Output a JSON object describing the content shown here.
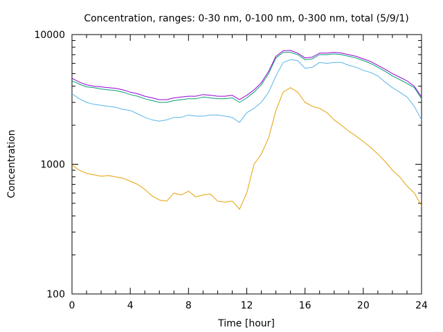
{
  "chart_data": {
    "type": "line",
    "title": "Concentration, ranges: 0-30 nm, 0-100 nm, 0-300 nm, total (5/9/1)",
    "xlabel": "Time [hour]",
    "ylabel": "Concentration",
    "xlim": [
      0,
      24
    ],
    "ylim": [
      100,
      10000
    ],
    "yscale": "log",
    "grid": false,
    "legend": "none",
    "x_ticks": [
      0,
      4,
      8,
      12,
      16,
      20,
      24
    ],
    "x_tick_labels": [
      "0",
      "4",
      "8",
      "12",
      "16",
      "20",
      "24"
    ],
    "y_ticks": [
      100,
      1000,
      10000
    ],
    "y_tick_labels": [
      "100",
      "1000",
      "10000"
    ],
    "x": [
      0,
      0.5,
      1,
      1.5,
      2,
      2.5,
      3,
      3.5,
      4,
      4.5,
      5,
      5.5,
      6,
      6.5,
      7,
      7.5,
      8,
      8.5,
      9,
      9.5,
      10,
      10.5,
      11,
      11.5,
      12,
      12.5,
      13,
      13.5,
      14,
      14.5,
      15,
      15.5,
      16,
      16.5,
      17,
      17.5,
      18,
      18.5,
      19,
      19.5,
      20,
      20.5,
      21,
      21.5,
      22,
      22.5,
      23,
      23.5,
      24
    ],
    "series": [
      {
        "color": "#e6a000",
        "values": [
          990,
          900,
          850,
          830,
          810,
          820,
          800,
          780,
          740,
          700,
          640,
          570,
          530,
          520,
          600,
          580,
          620,
          560,
          580,
          590,
          520,
          510,
          520,
          450,
          600,
          1000,
          1200,
          1600,
          2600,
          3600,
          3900,
          3600,
          3000,
          2800,
          2700,
          2500,
          2200,
          2000,
          1800,
          1650,
          1500,
          1350,
          1200,
          1050,
          900,
          800,
          680,
          600,
          480
        ]
      },
      {
        "color": "#56b4e9",
        "values": [
          3500,
          3200,
          3000,
          2900,
          2850,
          2800,
          2750,
          2650,
          2600,
          2450,
          2300,
          2200,
          2150,
          2200,
          2300,
          2300,
          2400,
          2350,
          2350,
          2400,
          2400,
          2350,
          2300,
          2100,
          2500,
          2700,
          3000,
          3600,
          4800,
          6100,
          6400,
          6300,
          5500,
          5600,
          6100,
          6000,
          6100,
          6100,
          5800,
          5600,
          5300,
          5100,
          4800,
          4300,
          3900,
          3600,
          3300,
          2800,
          2200
        ]
      },
      {
        "color": "#009e73",
        "values": [
          4400,
          4150,
          3950,
          3900,
          3800,
          3750,
          3700,
          3600,
          3450,
          3350,
          3200,
          3100,
          3000,
          3000,
          3100,
          3150,
          3200,
          3200,
          3300,
          3250,
          3200,
          3200,
          3250,
          3000,
          3250,
          3600,
          4100,
          5000,
          6600,
          7300,
          7300,
          7000,
          6400,
          6500,
          7000,
          7000,
          7100,
          7000,
          6800,
          6600,
          6300,
          6000,
          5600,
          5200,
          4800,
          4500,
          4200,
          3900,
          3200
        ]
      },
      {
        "color": "#9400d3",
        "values": [
          4600,
          4300,
          4100,
          4000,
          3950,
          3900,
          3850,
          3750,
          3600,
          3500,
          3350,
          3250,
          3150,
          3150,
          3250,
          3300,
          3350,
          3350,
          3450,
          3400,
          3350,
          3350,
          3400,
          3150,
          3400,
          3750,
          4250,
          5200,
          6800,
          7500,
          7550,
          7200,
          6600,
          6700,
          7200,
          7200,
          7300,
          7200,
          7000,
          6800,
          6500,
          6200,
          5800,
          5400,
          5000,
          4700,
          4400,
          4000,
          3300
        ]
      }
    ]
  }
}
